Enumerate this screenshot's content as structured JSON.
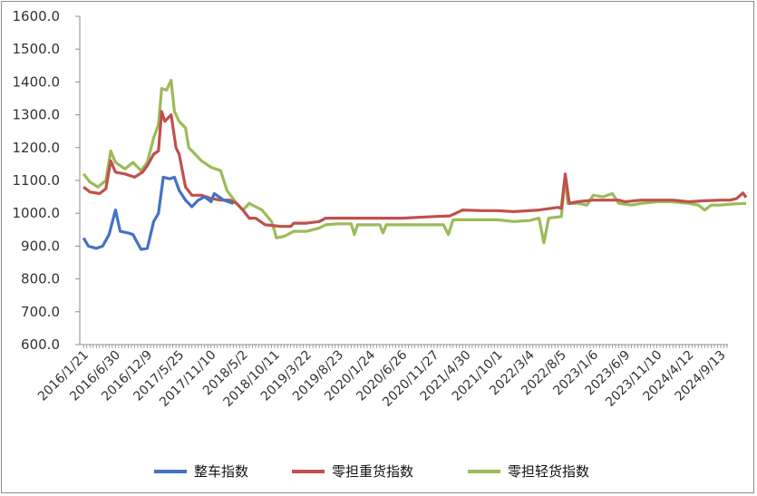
{
  "chart_data": {
    "type": "line",
    "title": "",
    "xlabel": "",
    "ylabel": "",
    "ylim": [
      600,
      1600
    ],
    "yticks": [
      "600.0",
      "700.0",
      "800.0",
      "900.0",
      "1000.0",
      "1100.0",
      "1200.0",
      "1300.0",
      "1400.0",
      "1500.0",
      "1600.0"
    ],
    "xticks": [
      "2016/1/21",
      "2016/6/30",
      "2016/12/9",
      "2017/5/25",
      "2017/11/10",
      "2018/5/2",
      "2018/10/11",
      "2019/3/22",
      "2019/8/23",
      "2020/1/24",
      "2020/6/26",
      "2020/11/27",
      "2021/4/30",
      "2021/10/1",
      "2022/3/4",
      "2022/8/5",
      "2023/1/6",
      "2023/6/9",
      "2023/11/10",
      "2024/4/12",
      "2024/9/13"
    ],
    "grid": false,
    "legend_position": "bottom",
    "colors": {
      "整车指数": "#4472c4",
      "零担重货指数": "#c0504d",
      "零担轻货指数": "#9bbb59"
    },
    "series": [
      {
        "name": "整车指数",
        "points": [
          [
            0,
            925
          ],
          [
            0.15,
            900
          ],
          [
            0.4,
            893
          ],
          [
            0.6,
            900
          ],
          [
            0.8,
            935
          ],
          [
            1.0,
            1010
          ],
          [
            1.15,
            945
          ],
          [
            1.4,
            940
          ],
          [
            1.55,
            935
          ],
          [
            1.8,
            890
          ],
          [
            2.0,
            893
          ],
          [
            2.2,
            975
          ],
          [
            2.35,
            1000
          ],
          [
            2.5,
            1110
          ],
          [
            2.7,
            1105
          ],
          [
            2.85,
            1110
          ],
          [
            3.0,
            1070
          ],
          [
            3.2,
            1040
          ],
          [
            3.4,
            1020
          ],
          [
            3.6,
            1040
          ],
          [
            3.8,
            1050
          ],
          [
            4.0,
            1035
          ],
          [
            4.1,
            1060
          ],
          [
            4.4,
            1040
          ],
          [
            4.7,
            1030
          ]
        ]
      },
      {
        "name": "零担重货指数",
        "points": [
          [
            0,
            1080
          ],
          [
            0.2,
            1065
          ],
          [
            0.5,
            1060
          ],
          [
            0.7,
            1075
          ],
          [
            0.85,
            1160
          ],
          [
            1.0,
            1125
          ],
          [
            1.3,
            1120
          ],
          [
            1.6,
            1110
          ],
          [
            1.85,
            1125
          ],
          [
            2.0,
            1145
          ],
          [
            2.2,
            1180
          ],
          [
            2.35,
            1190
          ],
          [
            2.45,
            1310
          ],
          [
            2.55,
            1280
          ],
          [
            2.75,
            1300
          ],
          [
            2.9,
            1200
          ],
          [
            3.0,
            1180
          ],
          [
            3.2,
            1080
          ],
          [
            3.4,
            1055
          ],
          [
            3.7,
            1055
          ],
          [
            4.0,
            1045
          ],
          [
            4.3,
            1040
          ],
          [
            4.6,
            1040
          ],
          [
            4.8,
            1030
          ],
          [
            5.0,
            1010
          ],
          [
            5.2,
            985
          ],
          [
            5.4,
            985
          ],
          [
            5.7,
            965
          ],
          [
            6.0,
            962
          ],
          [
            6.2,
            960
          ],
          [
            6.5,
            960
          ],
          [
            6.6,
            970
          ],
          [
            7.0,
            970
          ],
          [
            7.4,
            975
          ],
          [
            7.6,
            985
          ],
          [
            8.0,
            985
          ],
          [
            8.5,
            985
          ],
          [
            9.0,
            985
          ],
          [
            9.5,
            985
          ],
          [
            10.0,
            985
          ],
          [
            11.0,
            990
          ],
          [
            11.5,
            992
          ],
          [
            11.9,
            1010
          ],
          [
            12.5,
            1008
          ],
          [
            13.0,
            1008
          ],
          [
            13.5,
            1005
          ],
          [
            14.0,
            1008
          ],
          [
            14.3,
            1010
          ],
          [
            14.9,
            1018
          ],
          [
            15.0,
            1015
          ],
          [
            15.12,
            1120
          ],
          [
            15.25,
            1030
          ],
          [
            15.5,
            1035
          ],
          [
            16.0,
            1040
          ],
          [
            16.5,
            1040
          ],
          [
            16.8,
            1040
          ],
          [
            17.0,
            1035
          ],
          [
            17.5,
            1040
          ],
          [
            18.0,
            1040
          ],
          [
            18.5,
            1040
          ],
          [
            19.0,
            1035
          ],
          [
            19.5,
            1038
          ],
          [
            20.0,
            1040
          ],
          [
            20.3,
            1040
          ],
          [
            20.5,
            1045
          ],
          [
            20.7,
            1062
          ],
          [
            20.8,
            1048
          ]
        ]
      },
      {
        "name": "零担轻货指数",
        "points": [
          [
            0,
            1120
          ],
          [
            0.2,
            1095
          ],
          [
            0.45,
            1080
          ],
          [
            0.7,
            1100
          ],
          [
            0.85,
            1190
          ],
          [
            1.0,
            1155
          ],
          [
            1.3,
            1135
          ],
          [
            1.55,
            1155
          ],
          [
            1.8,
            1130
          ],
          [
            2.0,
            1155
          ],
          [
            2.2,
            1230
          ],
          [
            2.35,
            1270
          ],
          [
            2.45,
            1380
          ],
          [
            2.6,
            1375
          ],
          [
            2.75,
            1405
          ],
          [
            2.85,
            1310
          ],
          [
            3.0,
            1280
          ],
          [
            3.2,
            1260
          ],
          [
            3.3,
            1200
          ],
          [
            3.5,
            1180
          ],
          [
            3.7,
            1160
          ],
          [
            4.0,
            1140
          ],
          [
            4.3,
            1130
          ],
          [
            4.5,
            1070
          ],
          [
            4.8,
            1030
          ],
          [
            5.0,
            1010
          ],
          [
            5.2,
            1030
          ],
          [
            5.4,
            1020
          ],
          [
            5.6,
            1010
          ],
          [
            5.9,
            975
          ],
          [
            6.0,
            945
          ],
          [
            6.05,
            925
          ],
          [
            6.3,
            930
          ],
          [
            6.6,
            945
          ],
          [
            7.0,
            945
          ],
          [
            7.4,
            955
          ],
          [
            7.6,
            965
          ],
          [
            8.0,
            968
          ],
          [
            8.4,
            968
          ],
          [
            8.5,
            935
          ],
          [
            8.6,
            965
          ],
          [
            9.0,
            965
          ],
          [
            9.3,
            965
          ],
          [
            9.4,
            940
          ],
          [
            9.5,
            965
          ],
          [
            10.0,
            965
          ],
          [
            11.0,
            965
          ],
          [
            11.3,
            965
          ],
          [
            11.45,
            935
          ],
          [
            11.6,
            980
          ],
          [
            12.0,
            980
          ],
          [
            12.5,
            980
          ],
          [
            13.0,
            980
          ],
          [
            13.5,
            975
          ],
          [
            14.0,
            978
          ],
          [
            14.3,
            985
          ],
          [
            14.45,
            910
          ],
          [
            14.6,
            985
          ],
          [
            15.0,
            990
          ],
          [
            15.12,
            1110
          ],
          [
            15.2,
            1030
          ],
          [
            15.5,
            1030
          ],
          [
            15.8,
            1025
          ],
          [
            16.0,
            1055
          ],
          [
            16.3,
            1050
          ],
          [
            16.6,
            1060
          ],
          [
            16.8,
            1030
          ],
          [
            17.2,
            1025
          ],
          [
            17.5,
            1030
          ],
          [
            18.0,
            1035
          ],
          [
            18.5,
            1035
          ],
          [
            19.0,
            1030
          ],
          [
            19.3,
            1025
          ],
          [
            19.5,
            1010
          ],
          [
            19.7,
            1025
          ],
          [
            20.0,
            1025
          ],
          [
            20.3,
            1028
          ],
          [
            20.8,
            1030
          ]
        ]
      }
    ]
  }
}
